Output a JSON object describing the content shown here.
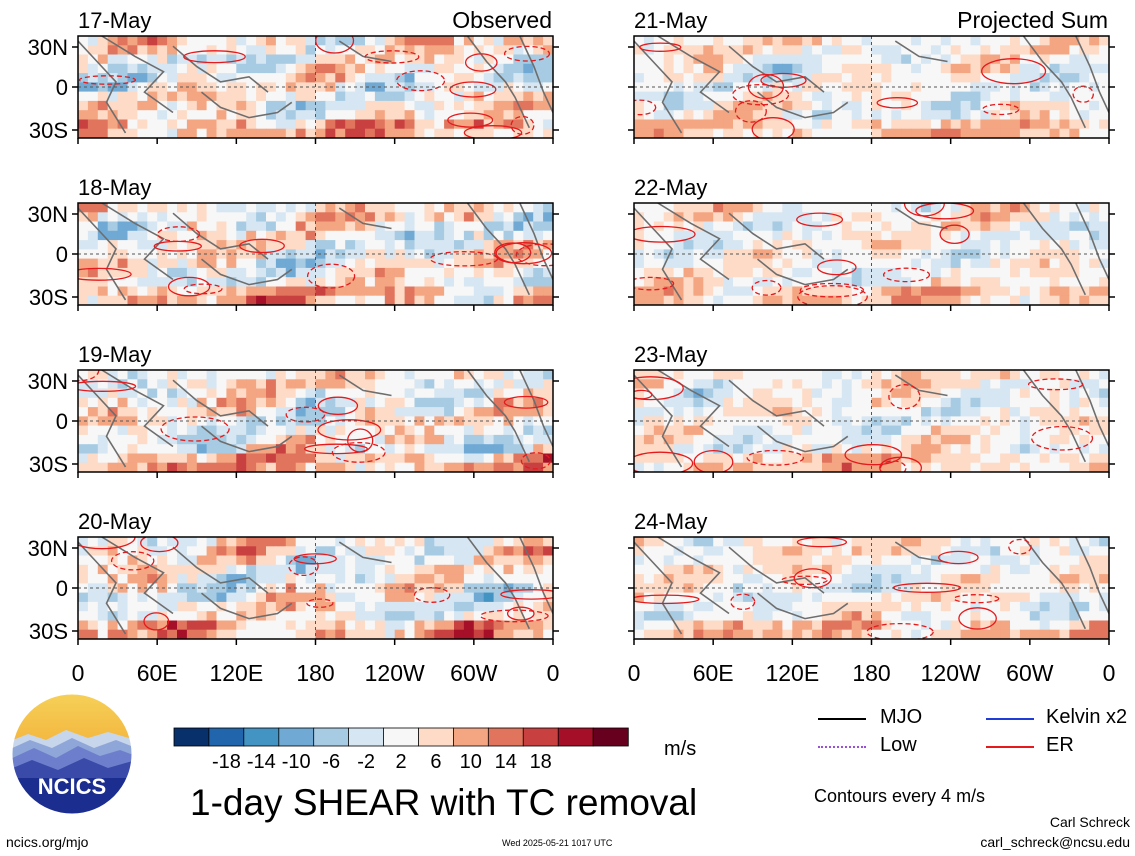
{
  "chart_data": {
    "type": "heatmap",
    "title": "1-day SHEAR with TC removal",
    "units": "m/s",
    "contour_note": "Contours every 4 m/s",
    "columns": [
      {
        "label": "Observed",
        "dates": [
          "17-May",
          "18-May",
          "19-May",
          "20-May"
        ]
      },
      {
        "label": "Projected Sum",
        "dates": [
          "21-May",
          "22-May",
          "23-May",
          "24-May"
        ]
      }
    ],
    "lat_ticks": [
      "30N",
      "0",
      "30S"
    ],
    "lon_ticks": [
      "0",
      "60E",
      "120E",
      "180",
      "120W",
      "60W",
      "0"
    ],
    "colorbar": {
      "ticks": [
        "-18",
        "-14",
        "-10",
        "-6",
        "-2",
        "2",
        "6",
        "10",
        "14",
        "18"
      ],
      "colors": [
        "#08306b",
        "#2166ac",
        "#4393c3",
        "#6fa9d4",
        "#a6cbe3",
        "#d6e6f2",
        "#f7f7f7",
        "#fddbc7",
        "#f4a582",
        "#e0745c",
        "#c94040",
        "#a50f27",
        "#67001f"
      ]
    },
    "legend": [
      {
        "label": "MJO",
        "color": "#000000",
        "dashed": false
      },
      {
        "label": "Kelvin x2",
        "color": "#1f3cd6",
        "dashed": false
      },
      {
        "label": "Low",
        "color": "#9b4fd8",
        "dashed": true
      },
      {
        "label": "ER",
        "color": "#e41a1c",
        "dashed": false
      }
    ]
  },
  "logo": {
    "text": "NCICS"
  },
  "footer": {
    "left": "ncics.org/mjo",
    "timestamp": "Wed 2025-05-21 1017 UTC",
    "author": "Carl Schreck",
    "email": "carl_schreck@ncsu.edu"
  }
}
